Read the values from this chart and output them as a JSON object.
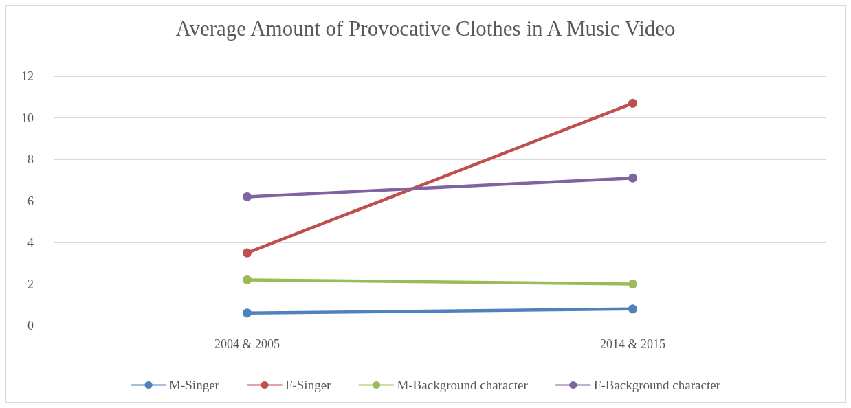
{
  "chart_data": {
    "type": "line",
    "title": "Average Amount of Provocative Clothes in A Music Video",
    "categories": [
      "2004 & 2005",
      "2014 & 2015"
    ],
    "series": [
      {
        "name": "M-Singer",
        "color": "#4f81bd",
        "values": [
          0.6,
          0.8
        ]
      },
      {
        "name": "F-Singer",
        "color": "#c0504d",
        "values": [
          3.5,
          10.7
        ]
      },
      {
        "name": "M-Background character",
        "color": "#9bbb59",
        "values": [
          2.2,
          2.0
        ]
      },
      {
        "name": "F-Background character",
        "color": "#8064a2",
        "values": [
          6.2,
          7.1
        ]
      }
    ],
    "ylim": [
      0,
      12
    ],
    "yticks": [
      0,
      2,
      4,
      6,
      8,
      10,
      12
    ],
    "grid": "y",
    "legend": "bottom",
    "marker": "circle",
    "line_style": "solid"
  }
}
